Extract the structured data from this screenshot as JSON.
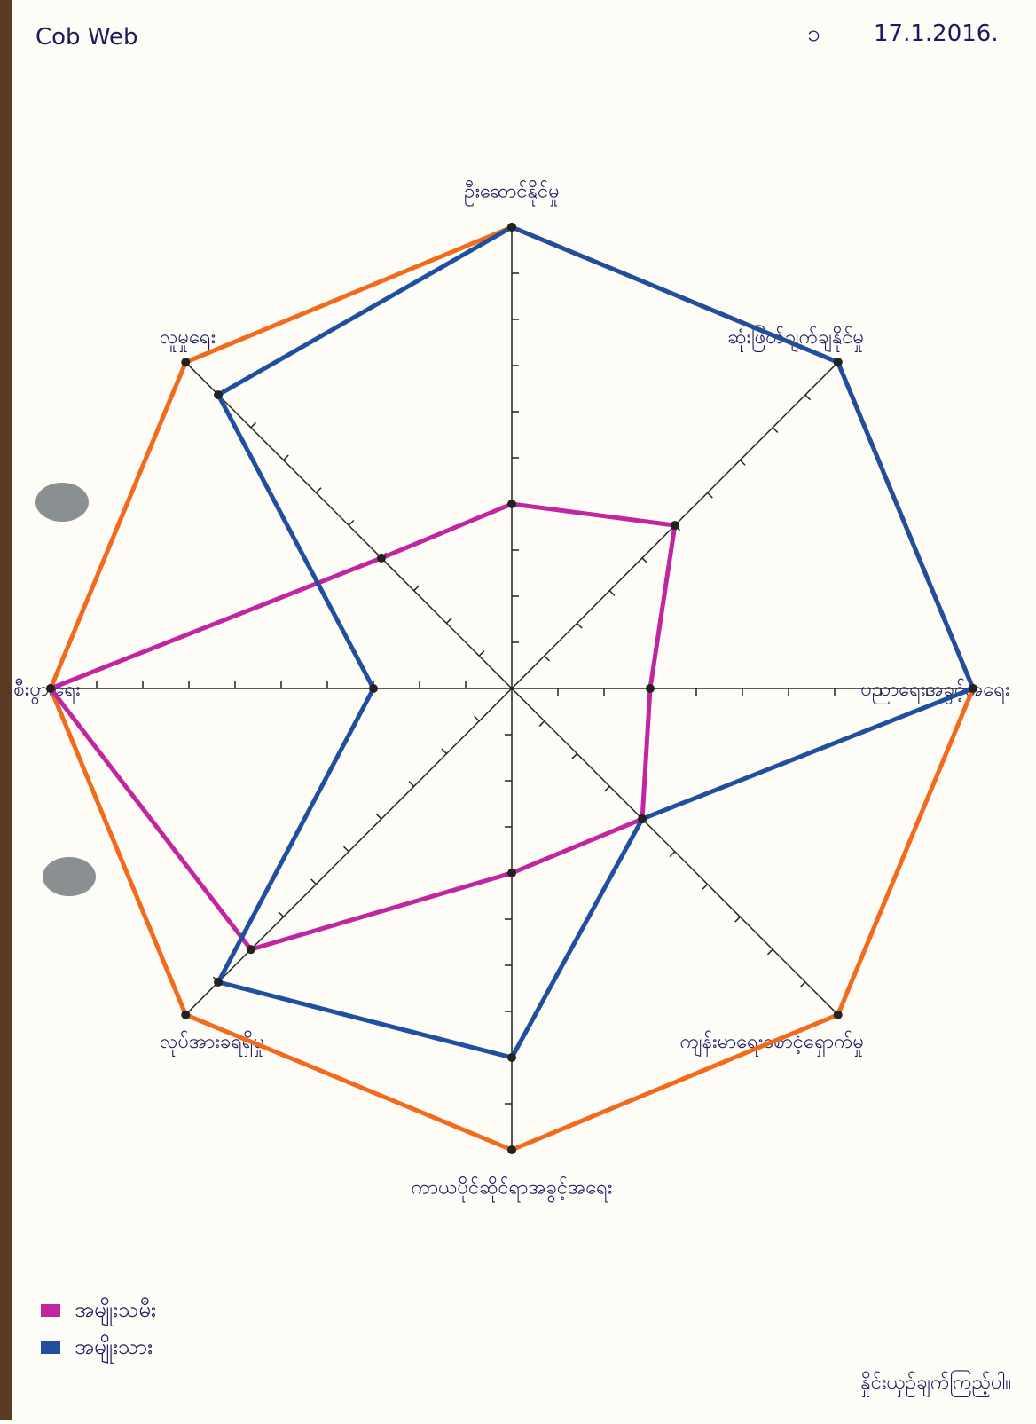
{
  "chart_data": {
    "type": "radar",
    "title": "Cob Web",
    "date": "17.1.2016.",
    "page_number": "၁",
    "categories": [
      "ဦးဆောင်နိုင်မှု",
      "ဆုံးဖြတ်ချက်ချနိုင်မှု",
      "ပညာရေးအခွင့်အရေး",
      "ကျန်းမာရေးစောင့်ရှောက်မှု",
      "ကာယပိုင်ဆိုင်ရာအခွင့်အရေး",
      "လုပ်အားခရရှိမှု",
      "စီးပွားရေး",
      "လူမှုရေး"
    ],
    "rlim": [
      0,
      10
    ],
    "rticks": [
      1,
      2,
      3,
      4,
      5,
      6,
      7,
      8,
      9
    ],
    "outline": {
      "color": "#f26a1b",
      "values": [
        10,
        10,
        10,
        10,
        10,
        10,
        10,
        10
      ]
    },
    "series": [
      {
        "name": "အမျိုးသမီး",
        "color": "#c2259f",
        "values": [
          4,
          5,
          3,
          4,
          4,
          8,
          10,
          4
        ]
      },
      {
        "name": "အမျိုးသား",
        "color": "#1f4f9e",
        "values": [
          10,
          10,
          10,
          4,
          8,
          9,
          3,
          9
        ]
      }
    ],
    "footnote": "နှိုင်းယှဉ်ချက်ကြည့်ပါ။"
  }
}
